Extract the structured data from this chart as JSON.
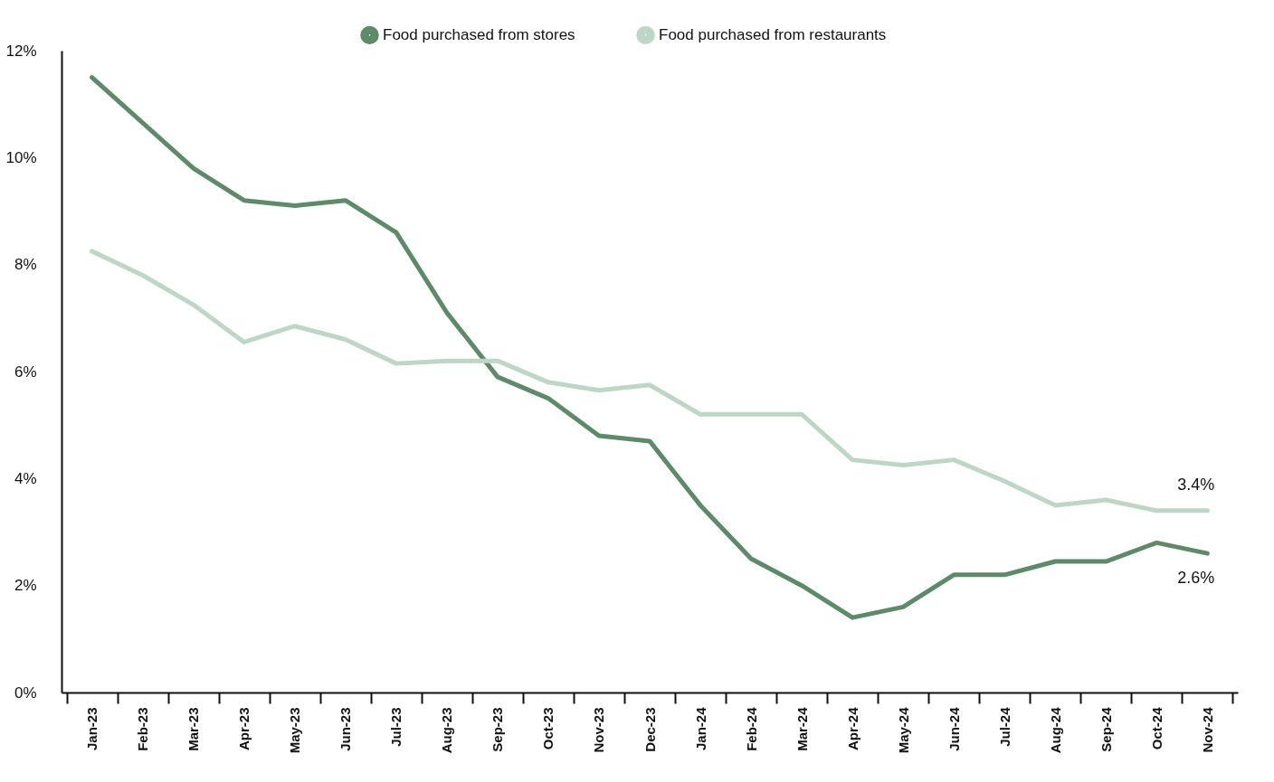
{
  "chart_data": {
    "type": "line",
    "legend": "top",
    "grid": false,
    "line_style": "solid",
    "marker": "none",
    "categories": [
      "Jan-23",
      "Feb-23",
      "Mar-23",
      "Apr-23",
      "May-23",
      "Jun-23",
      "Jul-23",
      "Aug-23",
      "Sep-23",
      "Oct-23",
      "Nov-23",
      "Dec-23",
      "Jan-24",
      "Feb-24",
      "Mar-24",
      "Apr-24",
      "May-24",
      "Jun-24",
      "Jul-24",
      "Aug-24",
      "Sep-24",
      "Oct-24",
      "Nov-24"
    ],
    "ylim": [
      0,
      12
    ],
    "yticks": [
      {
        "value": 0,
        "label": "0%"
      },
      {
        "value": 2,
        "label": "2%"
      },
      {
        "value": 4,
        "label": "4%"
      },
      {
        "value": 6,
        "label": "6%"
      },
      {
        "value": 8,
        "label": "8%"
      },
      {
        "value": 10,
        "label": "10%"
      },
      {
        "value": 12,
        "label": "12%"
      }
    ],
    "series": [
      {
        "name": "Food purchased from stores",
        "color": "#5e8a6a",
        "values": [
          11.5,
          10.65,
          9.8,
          9.2,
          9.1,
          9.2,
          8.6,
          7.1,
          5.9,
          5.5,
          4.8,
          4.7,
          3.5,
          2.5,
          2.0,
          1.4,
          1.6,
          2.2,
          2.2,
          2.45,
          2.45,
          2.8,
          2.6
        ],
        "value_labels": [
          null,
          null,
          null,
          null,
          null,
          null,
          null,
          null,
          null,
          null,
          null,
          null,
          null,
          null,
          null,
          null,
          null,
          null,
          null,
          null,
          null,
          null,
          "2.6%"
        ]
      },
      {
        "name": "Food purchased from restaurants",
        "color": "#bdd6c6",
        "values": [
          8.25,
          7.8,
          7.25,
          6.55,
          6.85,
          6.6,
          6.15,
          6.2,
          6.2,
          5.8,
          5.65,
          5.75,
          5.2,
          5.2,
          5.2,
          4.35,
          4.25,
          4.35,
          3.95,
          3.5,
          3.6,
          3.4,
          3.4
        ],
        "value_labels": [
          null,
          null,
          null,
          null,
          null,
          null,
          null,
          null,
          null,
          null,
          null,
          null,
          null,
          null,
          null,
          null,
          null,
          null,
          null,
          null,
          null,
          null,
          "3.4%"
        ]
      }
    ]
  }
}
